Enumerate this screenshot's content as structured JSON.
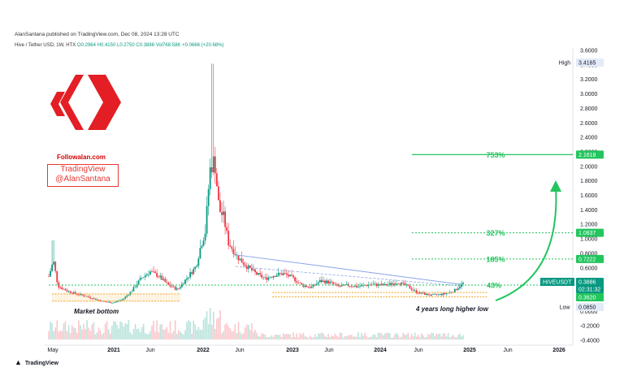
{
  "publisher": "AlanSantana published on TradingView.com, Dec 08, 2024 13:28 UTC",
  "ohlc_line": {
    "symbol": "Hive / Tether USD, 1W, HTX",
    "open": "O0.2964",
    "high": "H0.4150",
    "low": "L0.2750",
    "close": "C0.3886",
    "volume": "Vol768.58K",
    "change": "+0.0666 (+20.68%)"
  },
  "branding": {
    "site": "Followalan.com",
    "tv_line1": "TradingView",
    "tv_line2": "@AlanSantana",
    "footer": "TradingView"
  },
  "colors": {
    "up": "#089981",
    "down": "#f23645",
    "target": "#22c55e",
    "support": "#f5a623",
    "trend": "#8aa4e8",
    "logo": "#e31e24"
  },
  "chart_data": {
    "type": "candlestick",
    "title": "",
    "xlabel": "",
    "ylabel": "",
    "ylim": [
      -0.45,
      3.7
    ],
    "x_ticks": [
      "May",
      "2021",
      "Jun",
      "2022",
      "Jun",
      "2023",
      "Jun",
      "2024",
      "Jun",
      "2025",
      "Jun",
      "2026"
    ],
    "y_ticks": [
      "3.6000",
      "3.4000",
      "3.2000",
      "3.0000",
      "2.8000",
      "2.6000",
      "2.4000",
      "2.2000",
      "2.0000",
      "1.8000",
      "1.6000",
      "1.4000",
      "1.2000",
      "1.0000",
      "0.8000",
      "0.6000",
      "0.4000",
      "0.2000",
      "0.0000",
      "-0.2000",
      "-0.4000"
    ],
    "y_tick_values": [
      3.6,
      3.4,
      3.2,
      3.0,
      2.8,
      2.6,
      2.4,
      2.2,
      2.0,
      1.8,
      1.6,
      1.4,
      1.2,
      1.0,
      0.8,
      0.6,
      0.4,
      0.2,
      0.0,
      -0.2,
      -0.4
    ],
    "series_path": [
      [
        0.0,
        0.48
      ],
      [
        0.01,
        0.7
      ],
      [
        0.02,
        0.35
      ],
      [
        0.04,
        0.28
      ],
      [
        0.06,
        0.24
      ],
      [
        0.08,
        0.21
      ],
      [
        0.1,
        0.17
      ],
      [
        0.12,
        0.13
      ],
      [
        0.14,
        0.12
      ],
      [
        0.16,
        0.16
      ],
      [
        0.18,
        0.28
      ],
      [
        0.2,
        0.45
      ],
      [
        0.22,
        0.55
      ],
      [
        0.24,
        0.48
      ],
      [
        0.26,
        0.36
      ],
      [
        0.28,
        0.3
      ],
      [
        0.3,
        0.46
      ],
      [
        0.32,
        0.62
      ],
      [
        0.33,
        0.9
      ],
      [
        0.34,
        1.1
      ],
      [
        0.35,
        1.95
      ],
      [
        0.36,
        2.1
      ],
      [
        0.37,
        1.4
      ],
      [
        0.38,
        1.3
      ],
      [
        0.39,
        0.95
      ],
      [
        0.41,
        0.75
      ],
      [
        0.43,
        0.62
      ],
      [
        0.45,
        0.52
      ],
      [
        0.47,
        0.45
      ],
      [
        0.49,
        0.5
      ],
      [
        0.51,
        0.52
      ],
      [
        0.53,
        0.46
      ],
      [
        0.55,
        0.36
      ],
      [
        0.57,
        0.33
      ],
      [
        0.59,
        0.42
      ],
      [
        0.61,
        0.4
      ],
      [
        0.63,
        0.34
      ],
      [
        0.65,
        0.36
      ],
      [
        0.67,
        0.34
      ],
      [
        0.7,
        0.37
      ],
      [
        0.73,
        0.36
      ],
      [
        0.76,
        0.4
      ],
      [
        0.78,
        0.34
      ],
      [
        0.8,
        0.26
      ],
      [
        0.83,
        0.22
      ],
      [
        0.86,
        0.24
      ],
      [
        0.88,
        0.28
      ],
      [
        0.9,
        0.39
      ]
    ],
    "levels": [
      {
        "label": "753%",
        "value": 2.1618
      },
      {
        "label": "327%",
        "value": 1.0837
      },
      {
        "label": "185%",
        "value": 0.7222
      },
      {
        "label": "43%",
        "value": 0.362
      }
    ],
    "price_tags": {
      "high_label": "High",
      "high": "3.4165",
      "target1": "2.1618",
      "target2": "1.0837",
      "target3": "0.7222",
      "symbol": "HIVEUSDT",
      "last": "0.3886",
      "countdown": "02:31:32",
      "support": "0.3620",
      "low_label": "Low",
      "low": "0.0850"
    },
    "annotations": {
      "market_bottom": "Market bottom",
      "higher_low": "4 years long higher low"
    }
  }
}
